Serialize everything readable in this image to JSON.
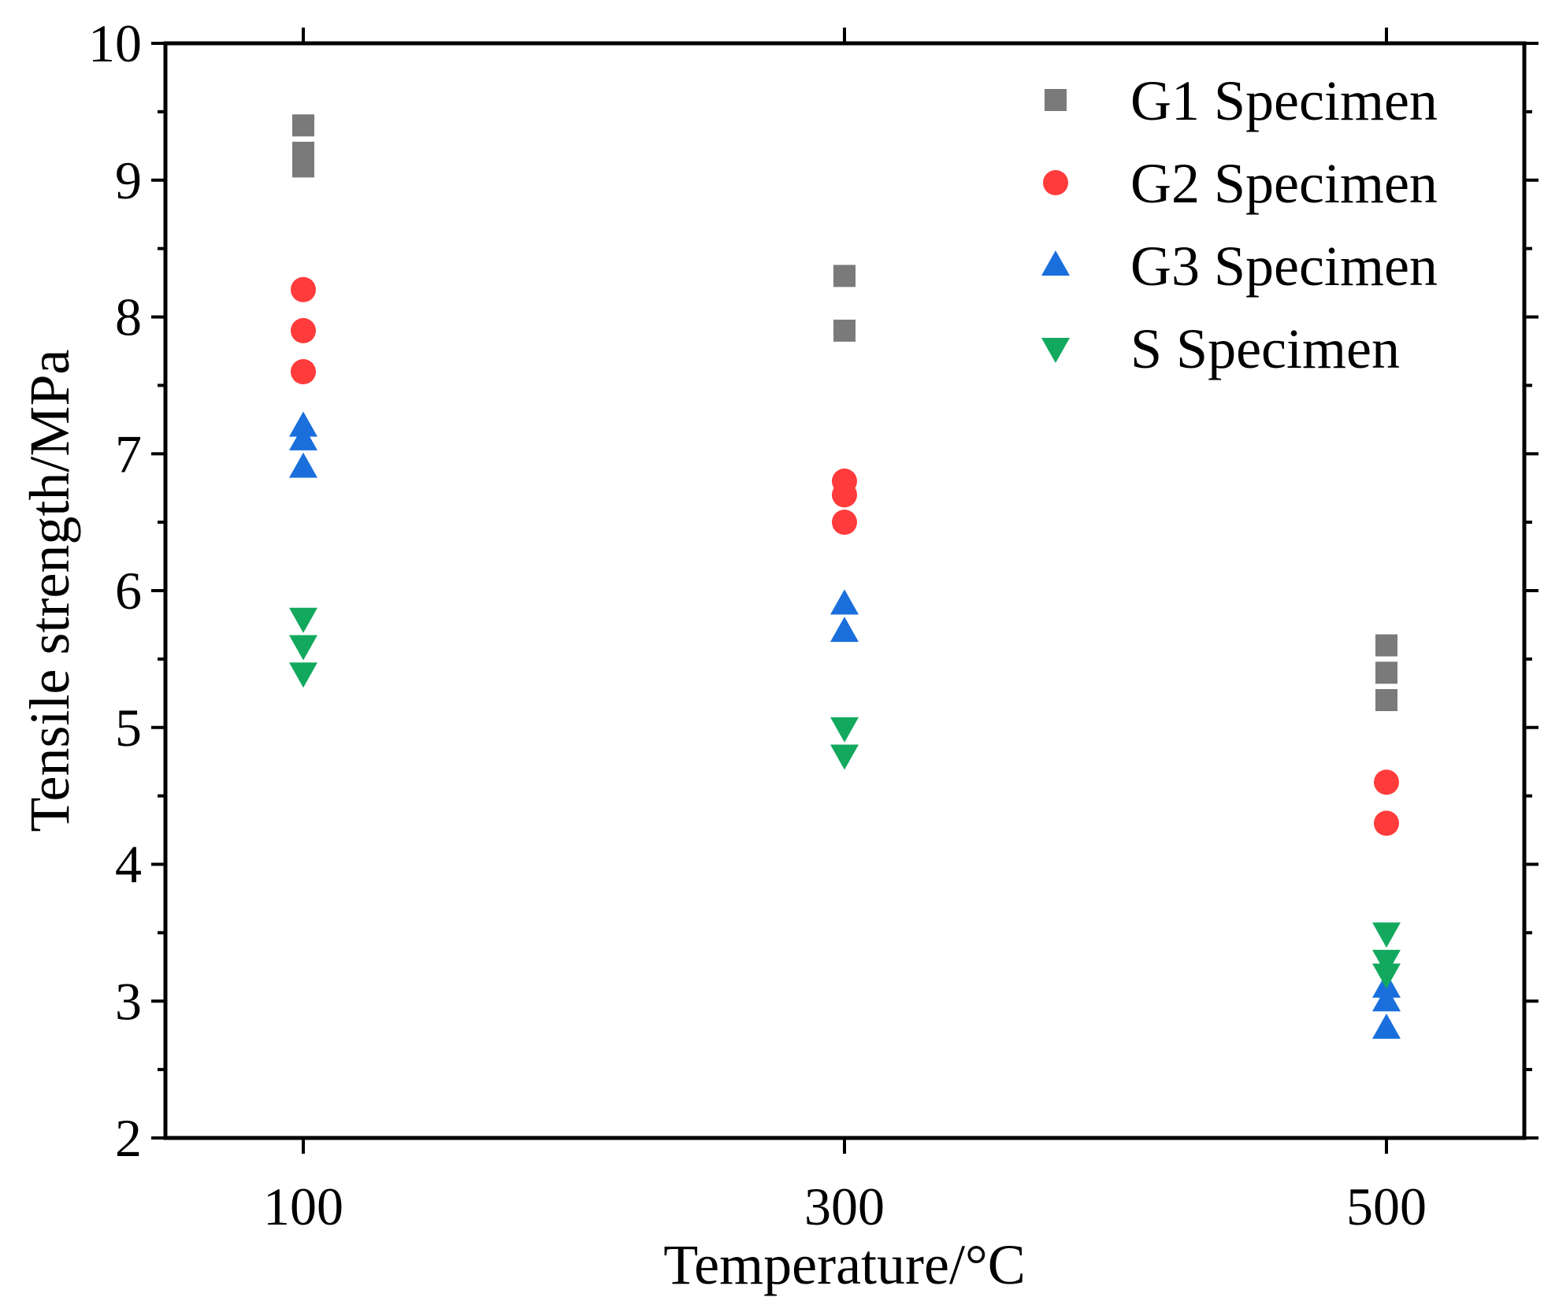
{
  "chart_data": {
    "type": "scatter",
    "xlabel": "Temperature/°C",
    "ylabel": "Tensile strength/MPa",
    "x_categories": [
      "100",
      "300",
      "500"
    ],
    "ylim": [
      2,
      10
    ],
    "y_ticks": [
      "2",
      "3",
      "4",
      "5",
      "6",
      "7",
      "8",
      "9",
      "10"
    ],
    "grid": false,
    "legend_position": "top-right",
    "series": [
      {
        "name": "G1 Specimen",
        "marker": "square",
        "color": "#7a7a7a",
        "points": [
          {
            "x": "100",
            "y": 9.4
          },
          {
            "x": "100",
            "y": 9.2
          },
          {
            "x": "100",
            "y": 9.1
          },
          {
            "x": "300",
            "y": 8.3
          },
          {
            "x": "300",
            "y": 7.9
          },
          {
            "x": "500",
            "y": 5.6
          },
          {
            "x": "500",
            "y": 5.4
          },
          {
            "x": "500",
            "y": 5.2
          }
        ]
      },
      {
        "name": "G2 Specimen",
        "marker": "circle",
        "color": "#ff3b3b",
        "points": [
          {
            "x": "100",
            "y": 8.2
          },
          {
            "x": "100",
            "y": 7.9
          },
          {
            "x": "100",
            "y": 7.6
          },
          {
            "x": "300",
            "y": 6.8
          },
          {
            "x": "300",
            "y": 6.7
          },
          {
            "x": "300",
            "y": 6.5
          },
          {
            "x": "500",
            "y": 4.6
          },
          {
            "x": "500",
            "y": 4.3
          }
        ]
      },
      {
        "name": "G3 Specimen",
        "marker": "triangle-up",
        "color": "#1a6fdc",
        "points": [
          {
            "x": "100",
            "y": 7.2
          },
          {
            "x": "100",
            "y": 7.1
          },
          {
            "x": "100",
            "y": 6.9
          },
          {
            "x": "300",
            "y": 5.9
          },
          {
            "x": "300",
            "y": 5.7
          },
          {
            "x": "500",
            "y": 3.1
          },
          {
            "x": "500",
            "y": 3.0
          },
          {
            "x": "500",
            "y": 2.8
          }
        ]
      },
      {
        "name": "S Specimen",
        "marker": "triangle-down",
        "color": "#12a95f",
        "points": [
          {
            "x": "100",
            "y": 5.8
          },
          {
            "x": "100",
            "y": 5.6
          },
          {
            "x": "100",
            "y": 5.4
          },
          {
            "x": "300",
            "y": 5.0
          },
          {
            "x": "300",
            "y": 4.8
          },
          {
            "x": "500",
            "y": 3.5
          },
          {
            "x": "500",
            "y": 3.3
          },
          {
            "x": "500",
            "y": 3.2
          }
        ]
      }
    ]
  }
}
